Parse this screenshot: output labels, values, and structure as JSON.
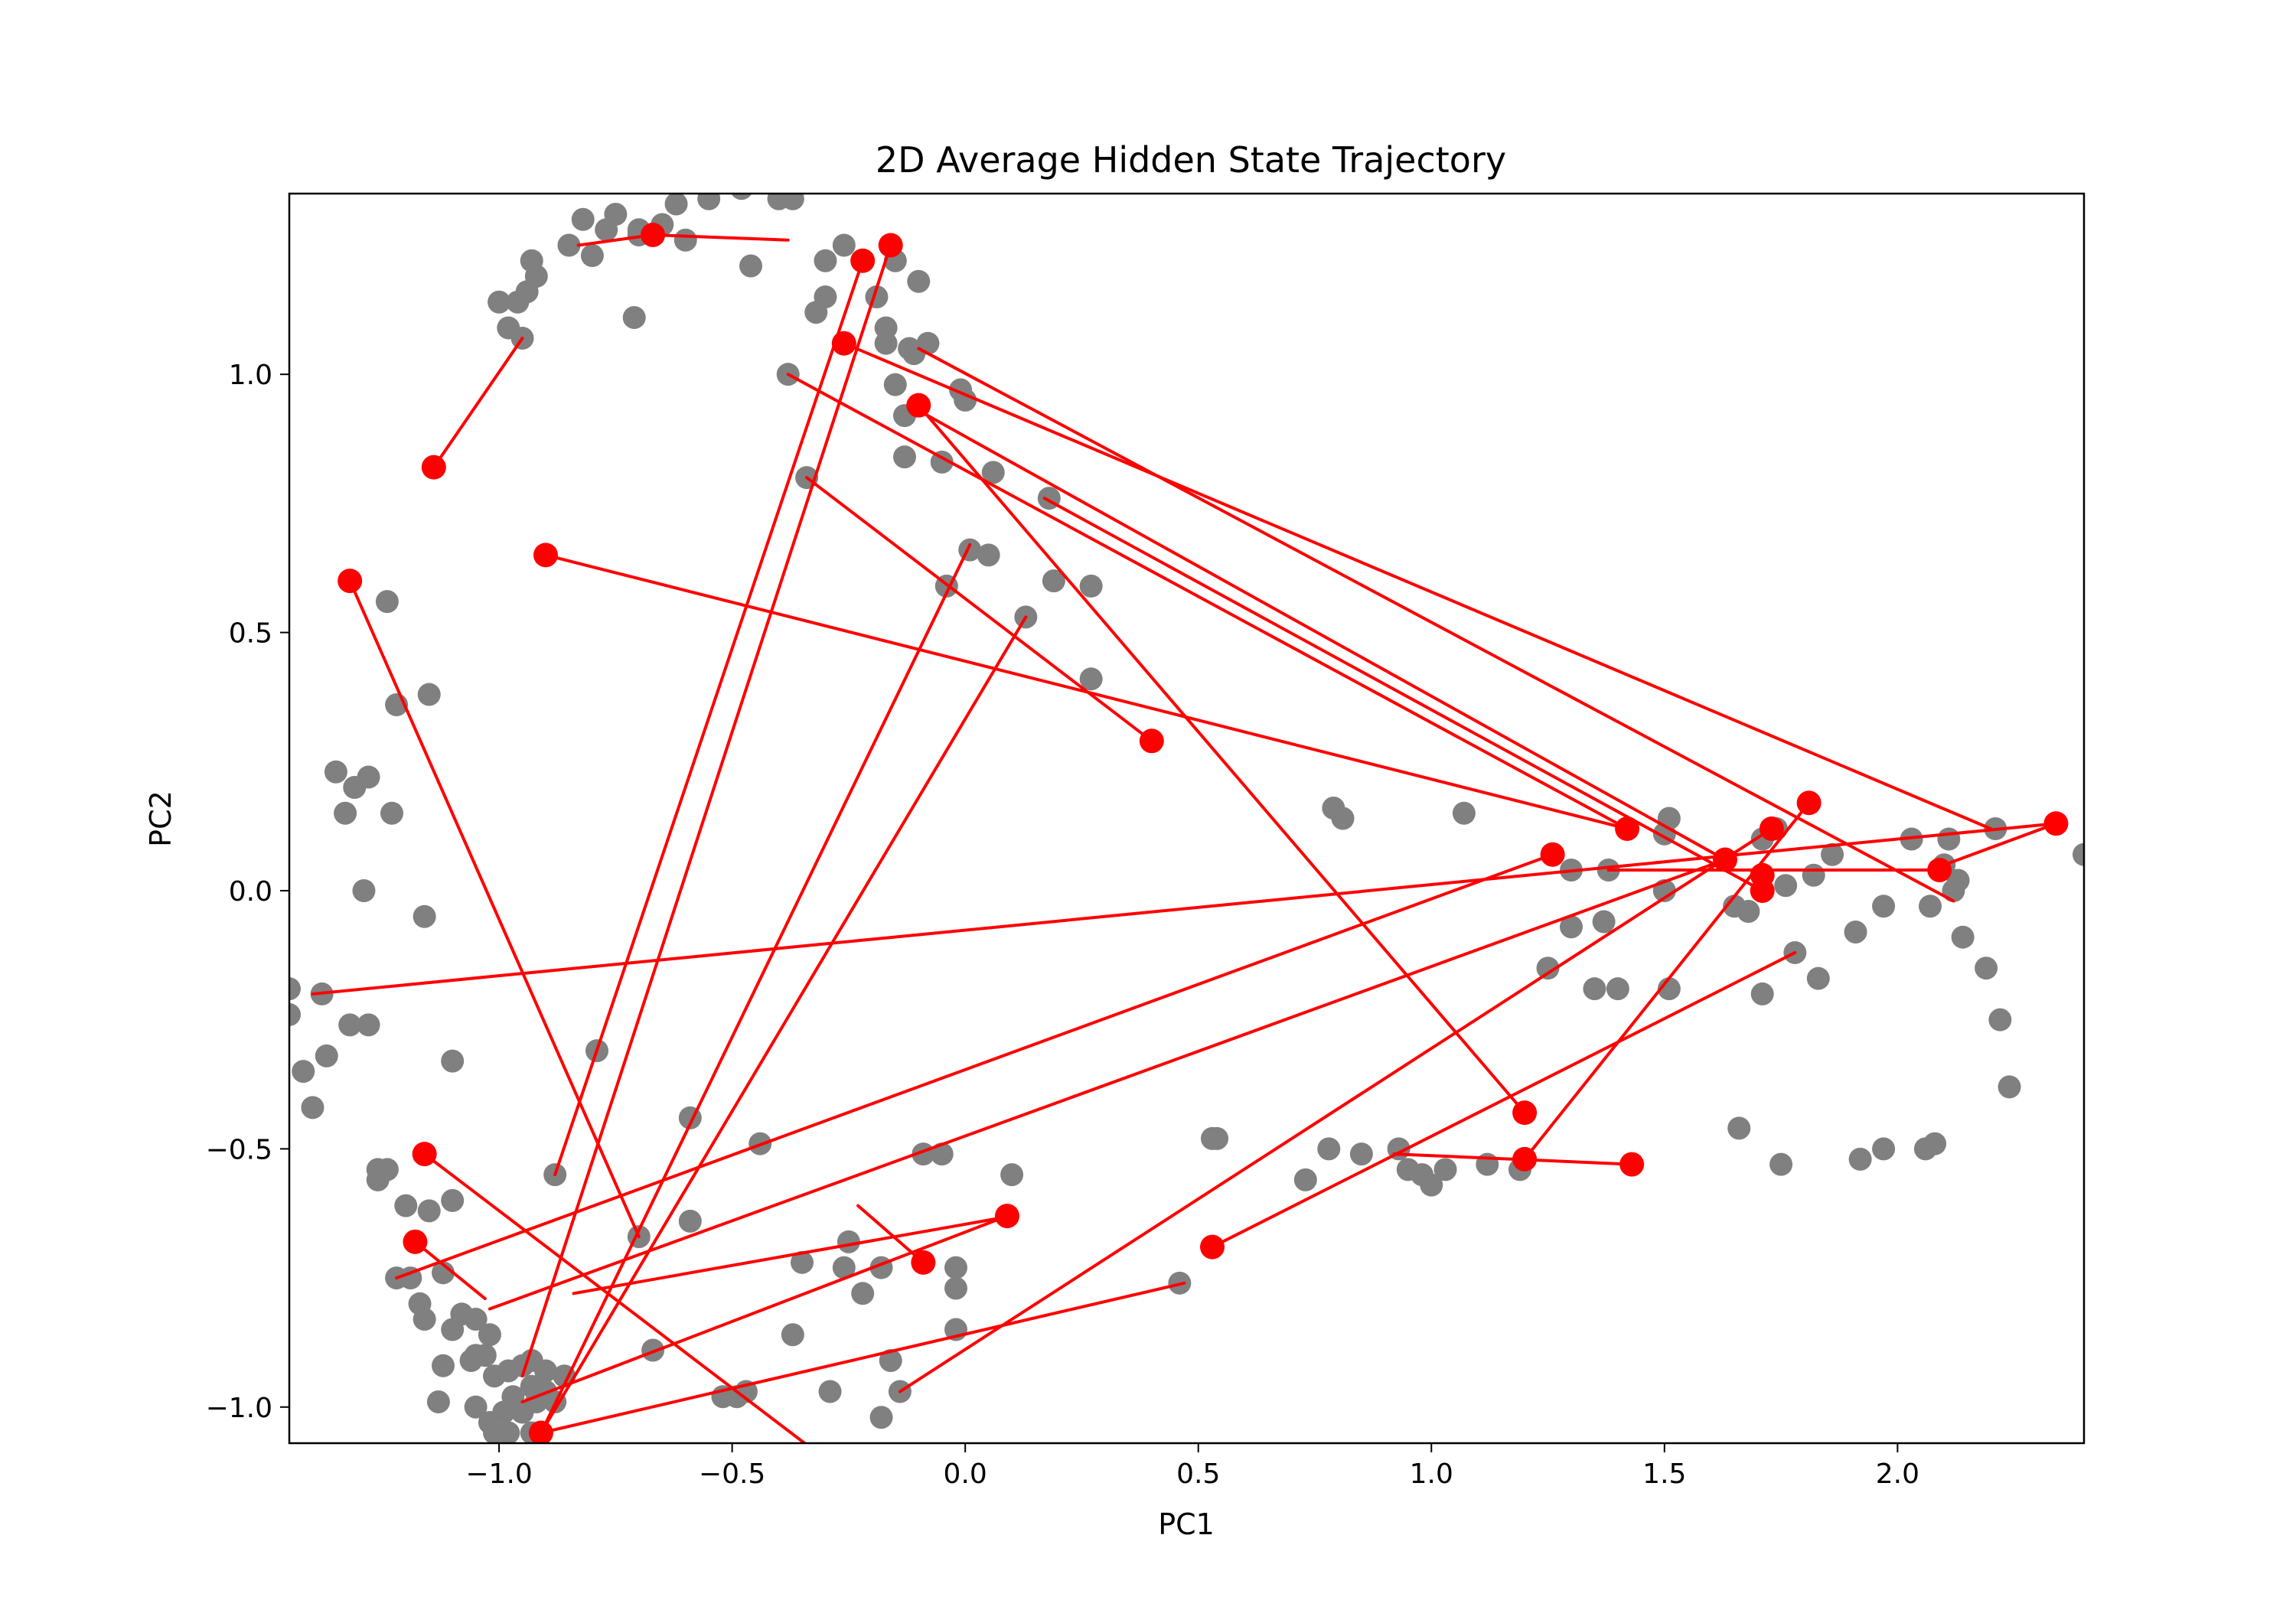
{
  "chart_data": {
    "type": "scatter",
    "title": "2D Average Hidden State Trajectory",
    "xlabel": "PC1",
    "ylabel": "PC2",
    "xlim": [
      -1.45,
      2.4
    ],
    "ylim": [
      -1.07,
      1.35
    ],
    "xticks": [
      -1.0,
      -0.5,
      0.0,
      0.5,
      1.0,
      1.5,
      2.0
    ],
    "xtick_labels": [
      "−1.0",
      "−0.5",
      "0.0",
      "0.5",
      "1.0",
      "1.5",
      "2.0"
    ],
    "yticks": [
      -1.0,
      -0.5,
      0.0,
      0.5,
      1.0
    ],
    "ytick_labels": [
      "−1.0",
      "−0.5",
      "0.0",
      "0.5",
      "1.0"
    ],
    "grid": false,
    "colors": {
      "points": "#808080",
      "trajectory": "#ff0000"
    },
    "series": [
      {
        "kind": "points",
        "points": [
          [
            -0.82,
            1.3
          ],
          [
            -0.77,
            1.28
          ],
          [
            -0.75,
            1.31
          ],
          [
            -0.7,
            1.28
          ],
          [
            -0.65,
            1.29
          ],
          [
            -0.62,
            1.33
          ],
          [
            -0.55,
            1.34
          ],
          [
            -0.48,
            1.36
          ],
          [
            -0.4,
            1.34
          ],
          [
            -0.37,
            1.34
          ],
          [
            -0.85,
            1.25
          ],
          [
            -0.8,
            1.23
          ],
          [
            -0.7,
            1.27
          ],
          [
            -0.6,
            1.26
          ],
          [
            -0.46,
            1.21
          ],
          [
            -0.3,
            1.22
          ],
          [
            -0.26,
            1.25
          ],
          [
            -0.22,
            1.22
          ],
          [
            -0.15,
            1.22
          ],
          [
            -0.1,
            1.18
          ],
          [
            -0.93,
            1.22
          ],
          [
            -0.92,
            1.19
          ],
          [
            -0.94,
            1.16
          ],
          [
            -0.96,
            1.14
          ],
          [
            -1.0,
            1.14
          ],
          [
            -0.98,
            1.09
          ],
          [
            -0.95,
            1.07
          ],
          [
            -0.71,
            1.11
          ],
          [
            -0.3,
            1.15
          ],
          [
            -0.32,
            1.12
          ],
          [
            -0.19,
            1.15
          ],
          [
            -0.17,
            1.09
          ],
          [
            -0.17,
            1.06
          ],
          [
            -0.12,
            1.05
          ],
          [
            -0.08,
            1.06
          ],
          [
            -0.11,
            1.04
          ],
          [
            -0.15,
            0.98
          ],
          [
            -0.13,
            0.92
          ],
          [
            -0.01,
            0.97
          ],
          [
            0.0,
            0.95
          ],
          [
            -0.38,
            1.0
          ],
          [
            -0.34,
            0.8
          ],
          [
            -0.13,
            0.84
          ],
          [
            -0.05,
            0.83
          ],
          [
            0.06,
            0.81
          ],
          [
            0.18,
            0.76
          ],
          [
            0.01,
            0.66
          ],
          [
            0.05,
            0.65
          ],
          [
            -0.04,
            0.59
          ],
          [
            0.13,
            0.53
          ],
          [
            0.19,
            0.6
          ],
          [
            0.27,
            0.59
          ],
          [
            0.27,
            0.41
          ],
          [
            -1.35,
            0.23
          ],
          [
            -1.31,
            0.2
          ],
          [
            -1.28,
            0.22
          ],
          [
            -1.33,
            0.15
          ],
          [
            -1.23,
            0.15
          ],
          [
            -1.29,
            0.0
          ],
          [
            -1.22,
            0.36
          ],
          [
            -1.24,
            0.56
          ],
          [
            -1.15,
            0.38
          ],
          [
            -1.16,
            -0.05
          ],
          [
            -1.1,
            -0.33
          ],
          [
            -1.45,
            -0.19
          ],
          [
            -1.38,
            -0.2
          ],
          [
            -1.45,
            -0.24
          ],
          [
            -1.42,
            -0.35
          ],
          [
            -1.37,
            -0.32
          ],
          [
            -1.4,
            -0.42
          ],
          [
            -1.32,
            -0.26
          ],
          [
            -1.28,
            -0.26
          ],
          [
            -0.79,
            -0.31
          ],
          [
            -1.26,
            -0.54
          ],
          [
            -1.26,
            -0.56
          ],
          [
            -1.24,
            -0.54
          ],
          [
            -1.2,
            -0.61
          ],
          [
            -1.15,
            -0.62
          ],
          [
            -1.1,
            -0.6
          ],
          [
            -1.22,
            -0.75
          ],
          [
            -1.19,
            -0.75
          ],
          [
            -1.12,
            -0.74
          ],
          [
            -1.17,
            -0.8
          ],
          [
            -1.16,
            -0.83
          ],
          [
            -1.08,
            -0.82
          ],
          [
            -1.1,
            -0.85
          ],
          [
            -1.05,
            -0.83
          ],
          [
            -1.02,
            -0.86
          ],
          [
            -1.03,
            -0.9
          ],
          [
            -1.05,
            -0.9
          ],
          [
            -1.06,
            -0.91
          ],
          [
            -1.12,
            -0.92
          ],
          [
            -1.01,
            -0.94
          ],
          [
            -0.98,
            -0.93
          ],
          [
            -0.95,
            -0.92
          ],
          [
            -0.93,
            -0.91
          ],
          [
            -0.9,
            -0.93
          ],
          [
            -0.86,
            -0.94
          ],
          [
            -0.93,
            -0.96
          ],
          [
            -0.97,
            -0.98
          ],
          [
            -0.9,
            -0.97
          ],
          [
            -0.88,
            -0.99
          ],
          [
            -0.92,
            -0.99
          ],
          [
            -0.95,
            -1.01
          ],
          [
            -0.99,
            -1.01
          ],
          [
            -1.02,
            -1.03
          ],
          [
            -1.05,
            -1.0
          ],
          [
            -1.01,
            -1.05
          ],
          [
            -0.98,
            -1.05
          ],
          [
            -0.93,
            -1.05
          ],
          [
            -1.13,
            -0.99
          ],
          [
            -0.88,
            -0.55
          ],
          [
            -0.7,
            -0.67
          ],
          [
            -0.67,
            -0.89
          ],
          [
            -0.59,
            -0.44
          ],
          [
            -0.59,
            -0.64
          ],
          [
            -0.44,
            -0.49
          ],
          [
            -0.52,
            -0.98
          ],
          [
            -0.49,
            -0.98
          ],
          [
            -0.47,
            -0.97
          ],
          [
            -0.37,
            -0.86
          ],
          [
            -0.35,
            -0.72
          ],
          [
            -0.29,
            -0.97
          ],
          [
            -0.26,
            -0.73
          ],
          [
            -0.25,
            -0.68
          ],
          [
            -0.22,
            -0.78
          ],
          [
            -0.18,
            -0.73
          ],
          [
            -0.18,
            -1.02
          ],
          [
            -0.16,
            -0.91
          ],
          [
            -0.14,
            -0.97
          ],
          [
            -0.09,
            -0.51
          ],
          [
            -0.05,
            -0.51
          ],
          [
            -0.02,
            -0.73
          ],
          [
            -0.02,
            -0.77
          ],
          [
            -0.02,
            -0.85
          ],
          [
            0.1,
            -0.55
          ],
          [
            0.46,
            -0.76
          ],
          [
            0.53,
            -0.48
          ],
          [
            0.54,
            -0.48
          ],
          [
            0.73,
            -0.56
          ],
          [
            0.78,
            -0.5
          ],
          [
            0.85,
            -0.51
          ],
          [
            0.93,
            -0.5
          ],
          [
            0.95,
            -0.54
          ],
          [
            0.98,
            -0.55
          ],
          [
            1.0,
            -0.57
          ],
          [
            1.03,
            -0.54
          ],
          [
            1.12,
            -0.53
          ],
          [
            1.19,
            -0.54
          ],
          [
            0.79,
            0.16
          ],
          [
            0.81,
            0.14
          ],
          [
            1.07,
            0.15
          ],
          [
            1.25,
            -0.15
          ],
          [
            1.3,
            -0.07
          ],
          [
            1.3,
            0.04
          ],
          [
            1.35,
            -0.19
          ],
          [
            1.37,
            -0.06
          ],
          [
            1.38,
            0.04
          ],
          [
            1.4,
            -0.19
          ],
          [
            1.5,
            0.0
          ],
          [
            1.5,
            0.11
          ],
          [
            1.51,
            0.14
          ],
          [
            1.51,
            -0.19
          ],
          [
            1.65,
            -0.03
          ],
          [
            1.68,
            -0.04
          ],
          [
            1.71,
            -0.2
          ],
          [
            1.71,
            0.1
          ],
          [
            1.74,
            0.12
          ],
          [
            1.76,
            0.01
          ],
          [
            1.78,
            -0.12
          ],
          [
            1.82,
            0.03
          ],
          [
            1.83,
            -0.17
          ],
          [
            1.86,
            0.07
          ],
          [
            1.91,
            -0.08
          ],
          [
            1.97,
            -0.03
          ],
          [
            2.03,
            0.1
          ],
          [
            2.07,
            -0.03
          ],
          [
            2.1,
            0.05
          ],
          [
            2.11,
            0.1
          ],
          [
            2.12,
            0.0
          ],
          [
            2.13,
            0.02
          ],
          [
            2.14,
            -0.09
          ],
          [
            2.19,
            -0.15
          ],
          [
            2.21,
            0.12
          ],
          [
            2.22,
            -0.25
          ],
          [
            2.24,
            -0.38
          ],
          [
            2.4,
            0.07
          ],
          [
            1.66,
            -0.46
          ],
          [
            1.75,
            -0.53
          ],
          [
            1.92,
            -0.52
          ],
          [
            1.97,
            -0.5
          ],
          [
            2.06,
            -0.5
          ],
          [
            2.08,
            -0.49
          ]
        ]
      },
      {
        "kind": "trajectory",
        "segments": [
          [
            [
              -1.14,
              0.82
            ],
            [
              -0.95,
              1.07
            ]
          ],
          [
            [
              -0.67,
              1.27
            ],
            [
              -0.83,
              1.25
            ]
          ],
          [
            [
              -0.67,
              1.27
            ],
            [
              -0.38,
              1.26
            ]
          ],
          [
            [
              -1.32,
              0.6
            ],
            [
              -0.7,
              -0.67
            ]
          ],
          [
            [
              -0.9,
              0.65
            ],
            [
              1.42,
              0.12
            ]
          ],
          [
            [
              0.4,
              0.29
            ],
            [
              -0.34,
              0.8
            ]
          ],
          [
            [
              -0.22,
              1.22
            ],
            [
              -0.88,
              -0.55
            ]
          ],
          [
            [
              -0.16,
              1.25
            ],
            [
              -0.95,
              -0.94
            ]
          ],
          [
            [
              -0.26,
              1.06
            ],
            [
              2.2,
              0.12
            ]
          ],
          [
            [
              -0.1,
              1.05
            ],
            [
              2.12,
              -0.02
            ]
          ],
          [
            [
              -0.1,
              0.94
            ],
            [
              1.2,
              -0.43
            ]
          ],
          [
            [
              -0.38,
              1.0
            ],
            [
              1.42,
              0.12
            ]
          ],
          [
            [
              -0.12,
              0.94
            ],
            [
              1.63,
              0.06
            ]
          ],
          [
            [
              0.17,
              0.76
            ],
            [
              1.71,
              0.0
            ]
          ],
          [
            [
              1.81,
              0.17
            ],
            [
              1.2,
              -0.52
            ]
          ],
          [
            [
              1.26,
              0.07
            ],
            [
              -1.22,
              -0.75
            ]
          ],
          [
            [
              1.63,
              0.06
            ],
            [
              -1.02,
              -0.81
            ]
          ],
          [
            [
              -1.16,
              -0.51
            ],
            [
              -0.33,
              -1.08
            ]
          ],
          [
            [
              -1.18,
              -0.68
            ],
            [
              -1.03,
              -0.79
            ]
          ],
          [
            [
              2.34,
              0.13
            ],
            [
              2.1,
              0.05
            ]
          ],
          [
            [
              2.09,
              0.04
            ],
            [
              1.38,
              0.04
            ]
          ],
          [
            [
              2.34,
              0.13
            ],
            [
              -1.4,
              -0.2
            ]
          ],
          [
            [
              1.73,
              0.12
            ],
            [
              -0.14,
              -0.97
            ]
          ],
          [
            [
              1.78,
              -0.12
            ],
            [
              0.53,
              -0.69
            ]
          ],
          [
            [
              0.09,
              -0.63
            ],
            [
              -0.95,
              -0.99
            ]
          ],
          [
            [
              0.01,
              0.67
            ],
            [
              -0.91,
              -1.05
            ]
          ],
          [
            [
              0.13,
              0.53
            ],
            [
              -0.91,
              -1.05
            ]
          ],
          [
            [
              -0.91,
              -1.05
            ],
            [
              0.47,
              -0.76
            ]
          ],
          [
            [
              1.43,
              -0.53
            ],
            [
              0.92,
              -0.51
            ]
          ],
          [
            [
              -0.09,
              -0.72
            ],
            [
              -0.23,
              -0.61
            ]
          ],
          [
            [
              -0.84,
              -0.78
            ],
            [
              0.1,
              -0.63
            ]
          ]
        ],
        "markers": [
          [
            -1.14,
            0.82
          ],
          [
            -0.67,
            1.27
          ],
          [
            -1.32,
            0.6
          ],
          [
            -0.9,
            0.65
          ],
          [
            0.4,
            0.29
          ],
          [
            -0.22,
            1.22
          ],
          [
            -0.16,
            1.25
          ],
          [
            -0.26,
            1.06
          ],
          [
            -0.1,
            0.94
          ],
          [
            1.81,
            0.17
          ],
          [
            1.26,
            0.07
          ],
          [
            1.63,
            0.06
          ],
          [
            1.42,
            0.12
          ],
          [
            1.71,
            0.03
          ],
          [
            1.71,
            0.0
          ],
          [
            1.73,
            0.12
          ],
          [
            2.09,
            0.04
          ],
          [
            2.34,
            0.13
          ],
          [
            -1.16,
            -0.51
          ],
          [
            -1.18,
            -0.68
          ],
          [
            1.2,
            -0.43
          ],
          [
            1.2,
            -0.52
          ],
          [
            1.43,
            -0.53
          ],
          [
            0.53,
            -0.69
          ],
          [
            0.09,
            -0.63
          ],
          [
            -0.09,
            -0.72
          ],
          [
            -0.91,
            -1.05
          ]
        ]
      }
    ]
  }
}
